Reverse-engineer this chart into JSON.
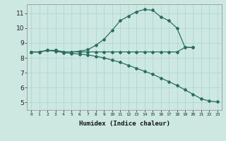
{
  "xlabel": "Humidex (Indice chaleur)",
  "bg_color": "#cce8e0",
  "line_color": "#2a6e62",
  "grid_color": "#aad4cc",
  "xlim": [
    -0.5,
    23.5
  ],
  "ylim": [
    4.5,
    11.6
  ],
  "xticks": [
    0,
    1,
    2,
    3,
    4,
    5,
    6,
    7,
    8,
    9,
    10,
    11,
    12,
    13,
    14,
    15,
    16,
    17,
    18,
    19,
    20,
    21,
    22,
    23
  ],
  "yticks": [
    5,
    6,
    7,
    8,
    9,
    10,
    11
  ],
  "line1_x": [
    0,
    1,
    2,
    3,
    4,
    5,
    6,
    7,
    8,
    9,
    10,
    11,
    12,
    13,
    14,
    15,
    16,
    17,
    18,
    19,
    20
  ],
  "line1_y": [
    8.4,
    8.4,
    8.5,
    8.5,
    8.4,
    8.4,
    8.45,
    8.55,
    8.85,
    9.25,
    9.85,
    10.5,
    10.8,
    11.1,
    11.25,
    11.2,
    10.75,
    10.5,
    10.0,
    8.7,
    8.7
  ],
  "line2_x": [
    0,
    1,
    2,
    3,
    4,
    5,
    6,
    7,
    8,
    9,
    10,
    11,
    12,
    13,
    14,
    15,
    16,
    17,
    18,
    19,
    20
  ],
  "line2_y": [
    8.4,
    8.4,
    8.5,
    8.5,
    8.4,
    8.4,
    8.4,
    8.4,
    8.4,
    8.4,
    8.4,
    8.4,
    8.4,
    8.4,
    8.4,
    8.4,
    8.4,
    8.4,
    8.4,
    8.7,
    8.7
  ],
  "line3_x": [
    0,
    1,
    2,
    3,
    4,
    5,
    6,
    7,
    8,
    9,
    10,
    11,
    12,
    13,
    14,
    15,
    16,
    17,
    18,
    19,
    20,
    21,
    22,
    23
  ],
  "line3_y": [
    8.4,
    8.4,
    8.5,
    8.45,
    8.35,
    8.3,
    8.25,
    8.2,
    8.1,
    8.0,
    7.85,
    7.7,
    7.5,
    7.3,
    7.1,
    6.9,
    6.65,
    6.4,
    6.15,
    5.85,
    5.55,
    5.25,
    5.1,
    5.05
  ]
}
